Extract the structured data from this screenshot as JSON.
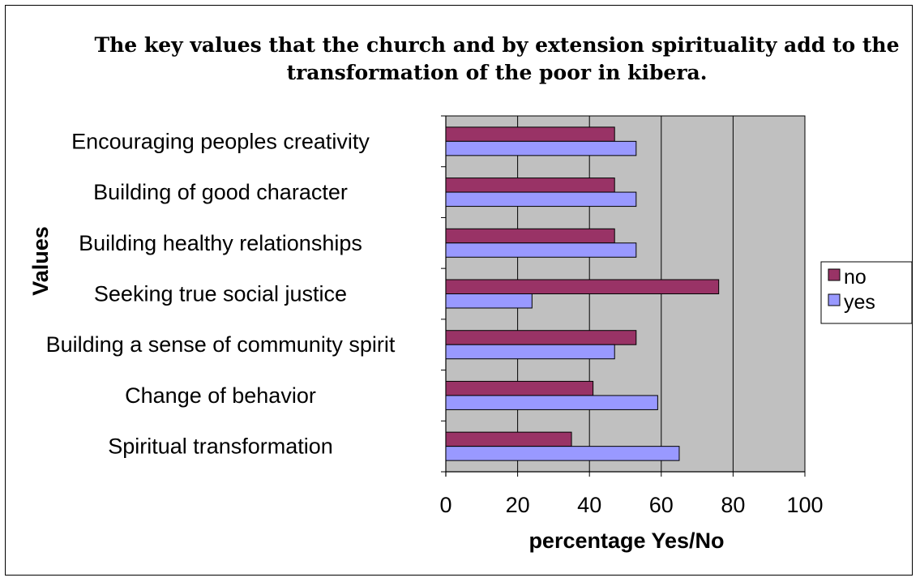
{
  "chart_data": {
    "type": "bar",
    "orientation": "horizontal",
    "title_lines": [
      "The key values that the church and by extension spirituality add to the",
      "transformation of the poor in kibera."
    ],
    "xlabel": "percentage Yes/No",
    "ylabel": "Values",
    "xlim": [
      0,
      100
    ],
    "xticks": [
      "0",
      "20",
      "40",
      "60",
      "80",
      "100"
    ],
    "categories": [
      "Encouraging peoples creativity",
      "Building of good character",
      "Building healthy relationships",
      "Seeking true social justice",
      "Building a sense of community spirit",
      "Change of behavior",
      "Spiritual transformation"
    ],
    "series": [
      {
        "name": "no",
        "color": "#993366",
        "values": [
          47,
          47,
          47,
          76,
          53,
          41,
          35
        ]
      },
      {
        "name": "yes",
        "color": "#9999FF",
        "values": [
          53,
          53,
          53,
          24,
          47,
          59,
          65
        ]
      }
    ],
    "grid": true,
    "plot_background": "#C0C0C0",
    "legend_position": "right"
  }
}
